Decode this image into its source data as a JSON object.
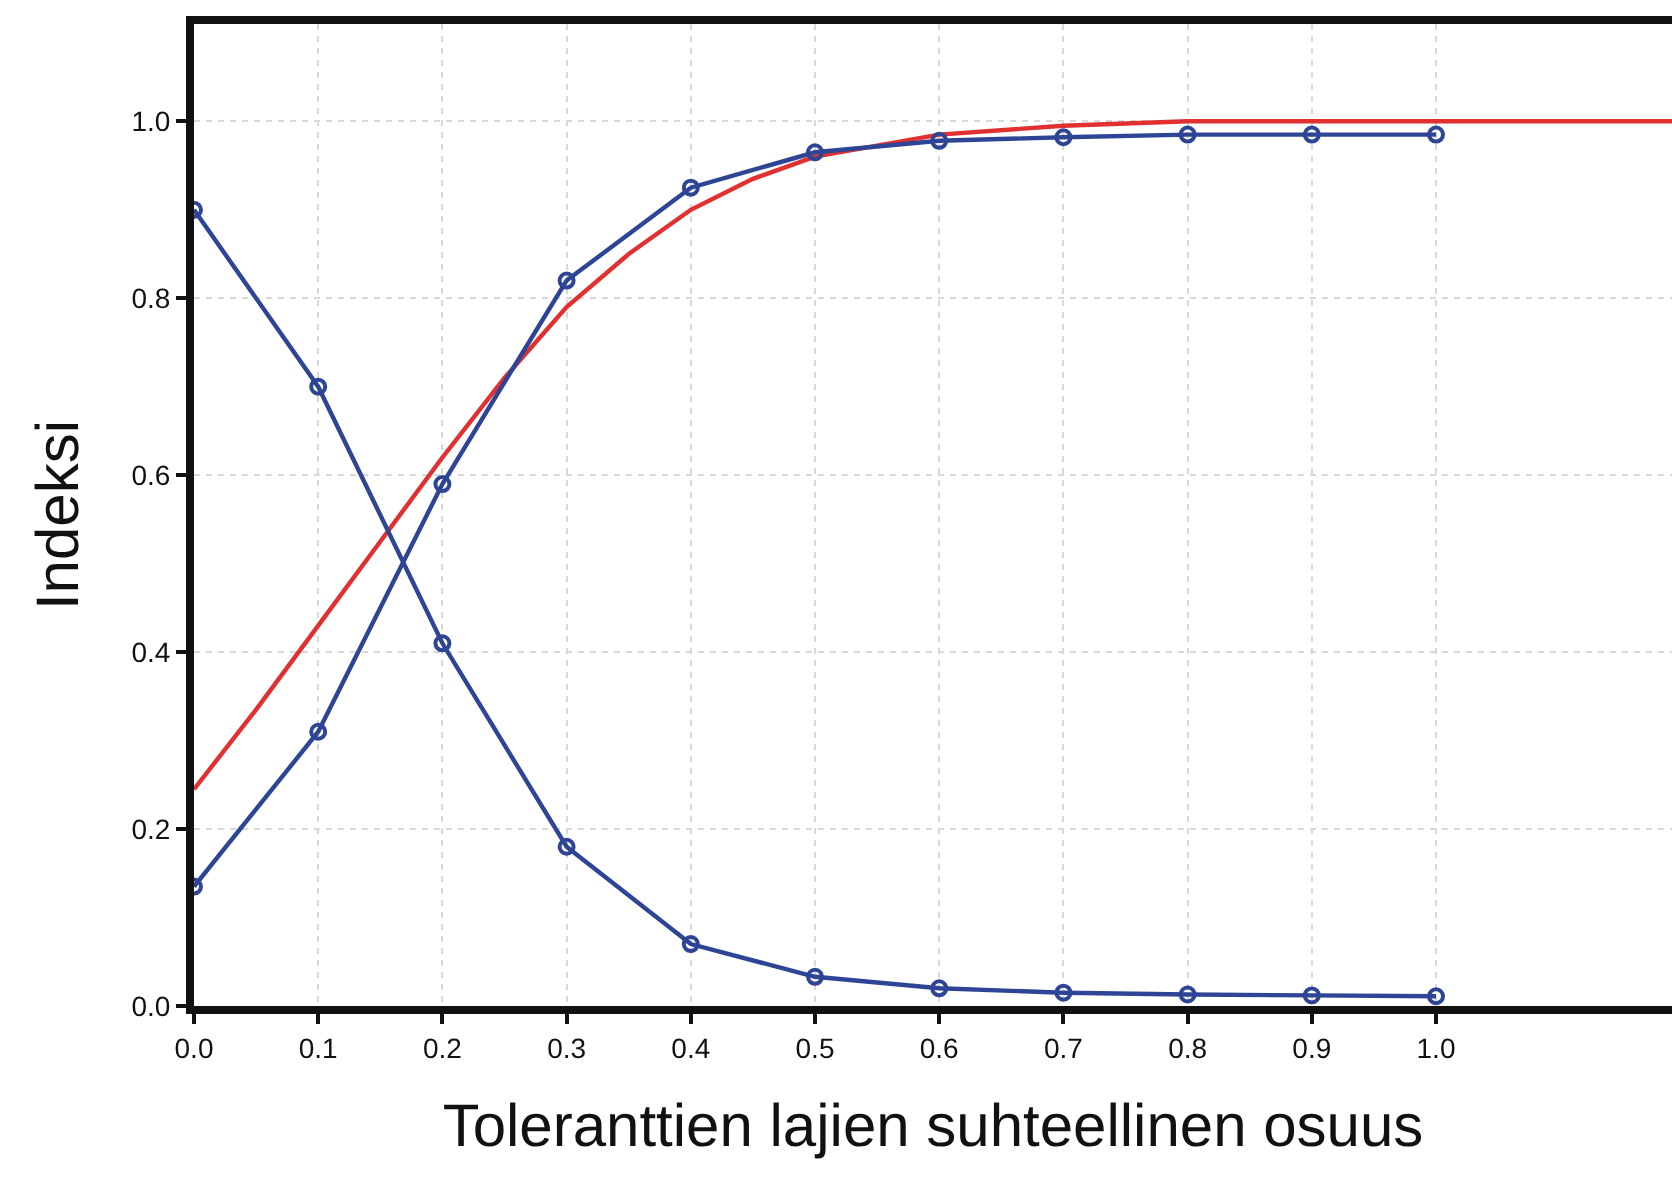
{
  "chart_data": {
    "type": "line",
    "xlabel": "Toleranttien lajien suhteellinen osuus",
    "ylabel": "Indeksi",
    "xlim": [
      0,
      1.19
    ],
    "ylim": [
      0,
      1.11
    ],
    "xticks": [
      {
        "value": 0,
        "label": "0.0"
      },
      0.1,
      0.2,
      0.3,
      0.4,
      0.5,
      0.6,
      0.7,
      0.8,
      0.9,
      {
        "value": 1,
        "label": "1.0"
      }
    ],
    "yticks": [
      {
        "value": 0,
        "label": "0.0"
      },
      0.2,
      0.4,
      0.6,
      0.8,
      {
        "value": 1,
        "label": "1.0"
      }
    ],
    "grid": true,
    "series": [
      {
        "color": "#e03030",
        "marker": "none",
        "x": [
          0,
          0.05,
          0.1,
          0.15,
          0.2,
          0.25,
          0.3,
          0.35,
          0.4,
          0.45,
          0.5,
          0.6,
          0.7,
          0.8,
          1.0,
          1.19
        ],
        "values": [
          0.245,
          0.335,
          0.43,
          0.525,
          0.62,
          0.71,
          0.79,
          0.85,
          0.9,
          0.935,
          0.96,
          0.985,
          0.995,
          1.0,
          1.0,
          1.0
        ]
      },
      {
        "color": "#2e4596",
        "marker": "circle",
        "x": [
          0,
          0.1,
          0.2,
          0.3,
          0.4,
          0.5,
          0.6,
          0.7,
          0.8,
          0.9,
          1.0
        ],
        "values": [
          0.135,
          0.31,
          0.59,
          0.82,
          0.925,
          0.965,
          0.978,
          0.982,
          0.985,
          0.985,
          0.985
        ]
      },
      {
        "color": "#2e4596",
        "marker": "circle",
        "x": [
          0,
          0.1,
          0.2,
          0.3,
          0.4,
          0.5,
          0.6,
          0.7,
          0.8,
          0.9,
          1.0
        ],
        "values": [
          0.9,
          0.7,
          0.41,
          0.18,
          0.07,
          0.033,
          0.02,
          0.015,
          0.013,
          0.012,
          0.011
        ]
      }
    ]
  }
}
